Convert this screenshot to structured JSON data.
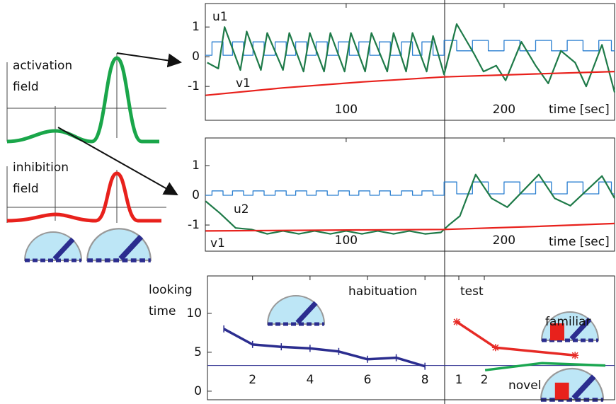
{
  "schematic": {
    "activation_label": "activation field",
    "inhibition_label": "inhibition field"
  },
  "chart_data": [
    {
      "type": "line",
      "u_label": "u1",
      "v_label": "v1",
      "xlabel": "time [sec]",
      "xlim": [
        10.8,
        270
      ],
      "ylim": [
        -2.14,
        1.79
      ],
      "xticks": [
        100,
        200
      ],
      "yticks": [
        -1,
        0,
        1
      ],
      "series": [
        {
          "color": "#2a7fd0",
          "x": [
            10.8,
            15,
            15,
            22,
            22,
            28,
            28,
            35,
            35,
            41,
            41,
            48,
            48,
            55,
            55,
            62,
            62,
            68,
            68,
            75,
            75,
            81,
            81,
            88,
            88,
            95,
            95,
            102,
            102,
            108,
            108,
            115,
            115,
            121,
            121,
            128,
            128,
            135,
            135,
            142,
            142,
            148,
            148,
            155,
            155,
            162,
            162,
            170,
            170,
            180,
            180,
            190,
            190,
            200,
            200,
            210,
            210,
            220,
            220,
            230,
            230,
            240,
            240,
            250,
            250,
            260,
            260,
            268,
            268,
            270
          ],
          "values": [
            0.05,
            0.05,
            0.5,
            0.5,
            0.05,
            0.05,
            0.5,
            0.5,
            0.05,
            0.05,
            0.5,
            0.5,
            0.05,
            0.05,
            0.5,
            0.5,
            0.05,
            0.05,
            0.5,
            0.5,
            0.05,
            0.05,
            0.5,
            0.5,
            0.05,
            0.05,
            0.5,
            0.5,
            0.05,
            0.05,
            0.5,
            0.5,
            0.05,
            0.05,
            0.5,
            0.5,
            0.05,
            0.05,
            0.5,
            0.5,
            0.05,
            0.05,
            0.5,
            0.5,
            0.05,
            0.05,
            0.55,
            0.55,
            0.2,
            0.2,
            0.55,
            0.55,
            0.2,
            0.2,
            0.55,
            0.55,
            0.2,
            0.2,
            0.55,
            0.55,
            0.2,
            0.2,
            0.55,
            0.55,
            0.2,
            0.2,
            0.55,
            0.55,
            0.2,
            0.2
          ]
        },
        {
          "name": "u1",
          "color": "#1e7a48",
          "x": [
            12,
            19,
            23,
            33,
            37,
            46,
            50,
            60,
            64,
            73,
            77,
            86,
            90,
            99,
            103,
            112,
            116,
            126,
            130,
            138,
            142,
            151,
            155,
            162,
            170,
            181,
            187,
            195,
            201,
            211,
            220,
            228,
            236,
            245,
            252,
            262,
            270
          ],
          "values": [
            -0.2,
            -0.4,
            1.0,
            -0.45,
            0.85,
            -0.45,
            0.8,
            -0.45,
            0.8,
            -0.5,
            0.8,
            -0.5,
            0.8,
            -0.5,
            0.8,
            -0.5,
            0.8,
            -0.5,
            0.8,
            -0.5,
            0.8,
            -0.5,
            0.7,
            -0.6,
            1.1,
            0.1,
            -0.5,
            -0.3,
            -0.8,
            0.5,
            -0.3,
            -0.9,
            0.2,
            -0.2,
            -1.0,
            0.4,
            -1.2
          ]
        },
        {
          "name": "v1",
          "color": "#e8211c",
          "x": [
            11,
            60,
            110,
            162,
            220,
            270
          ],
          "values": [
            -1.3,
            -1.05,
            -0.85,
            -0.68,
            -0.58,
            -0.5
          ]
        }
      ]
    },
    {
      "type": "line",
      "u_label": "u2",
      "v_label": "v1",
      "xlabel": "time [sec]",
      "xlim": [
        10.8,
        270
      ],
      "ylim": [
        -1.88,
        1.93
      ],
      "xticks": [
        100,
        200
      ],
      "yticks": [
        -1,
        0,
        1
      ],
      "series": [
        {
          "color": "#2a7fd0",
          "x": [
            10.8,
            15,
            15,
            22,
            22,
            28,
            28,
            35,
            35,
            41,
            41,
            48,
            48,
            55,
            55,
            62,
            62,
            68,
            68,
            75,
            75,
            81,
            81,
            88,
            88,
            95,
            95,
            102,
            102,
            108,
            108,
            115,
            115,
            121,
            121,
            128,
            128,
            135,
            135,
            142,
            142,
            148,
            148,
            155,
            155,
            162,
            162,
            170,
            170,
            180,
            180,
            190,
            190,
            200,
            200,
            210,
            210,
            220,
            220,
            230,
            230,
            240,
            240,
            250,
            250,
            260,
            260,
            268,
            268,
            270
          ],
          "values": [
            0,
            0,
            0.15,
            0.15,
            0,
            0,
            0.15,
            0.15,
            0,
            0,
            0.15,
            0.15,
            0,
            0,
            0.15,
            0.15,
            0,
            0,
            0.15,
            0.15,
            0,
            0,
            0.15,
            0.15,
            0,
            0,
            0.15,
            0.15,
            0,
            0,
            0.15,
            0.15,
            0,
            0,
            0.15,
            0.15,
            0,
            0,
            0.15,
            0.15,
            0,
            0,
            0.15,
            0.15,
            0,
            0,
            0.45,
            0.45,
            0.05,
            0.05,
            0.45,
            0.45,
            0.05,
            0.05,
            0.45,
            0.45,
            0.05,
            0.05,
            0.45,
            0.45,
            0.05,
            0.05,
            0.45,
            0.45,
            0.05,
            0.05,
            0.45,
            0.45,
            0.05,
            0.05
          ]
        },
        {
          "name": "u2",
          "color": "#1e7a48",
          "x": [
            11,
            20,
            30,
            40,
            50,
            60,
            70,
            80,
            90,
            100,
            110,
            120,
            130,
            140,
            150,
            160,
            165,
            172,
            182,
            192,
            202,
            222,
            232,
            242,
            262,
            270
          ],
          "values": [
            -0.2,
            -0.6,
            -1.1,
            -1.15,
            -1.3,
            -1.2,
            -1.3,
            -1.2,
            -1.3,
            -1.2,
            -1.3,
            -1.2,
            -1.3,
            -1.2,
            -1.3,
            -1.25,
            -1.0,
            -0.7,
            0.7,
            -0.1,
            -0.4,
            0.7,
            -0.1,
            -0.35,
            0.65,
            -0.1
          ]
        },
        {
          "name": "v1",
          "color": "#e8211c",
          "x": [
            11,
            162,
            220,
            270
          ],
          "values": [
            -1.2,
            -1.15,
            -1.05,
            -0.95
          ]
        }
      ]
    },
    {
      "type": "line",
      "ylabel": "looking time",
      "phase_labels": [
        "habituation",
        "test"
      ],
      "xlim": [
        0.43,
        14.6
      ],
      "x2lim": [
        -8.86,
        7.11
      ],
      "ylim": [
        -1.1,
        14.8
      ],
      "xticks": [
        2,
        4,
        6,
        8
      ],
      "x2ticks": [
        1,
        2
      ],
      "yticks": [
        0,
        5,
        10
      ],
      "threshold": 3.3,
      "series": [
        {
          "color": "#2b2d8f",
          "marker": "plus",
          "x": [
            1,
            2,
            3,
            4,
            5,
            6,
            7,
            8
          ],
          "values": [
            8.0,
            6.0,
            5.7,
            5.5,
            5.1,
            4.1,
            4.3,
            3.2
          ]
        },
        {
          "name": "familiar",
          "color": "#e62a25",
          "marker": "star",
          "axis": "x2",
          "x": [
            0.92,
            2.44,
            5.56
          ],
          "values": [
            8.9,
            5.6,
            4.6
          ]
        },
        {
          "name": "novel",
          "color": "#1aa650",
          "axis": "x2",
          "x": [
            2.03,
            4.25,
            6.75
          ],
          "values": [
            2.7,
            3.6,
            3.3
          ]
        }
      ]
    }
  ]
}
